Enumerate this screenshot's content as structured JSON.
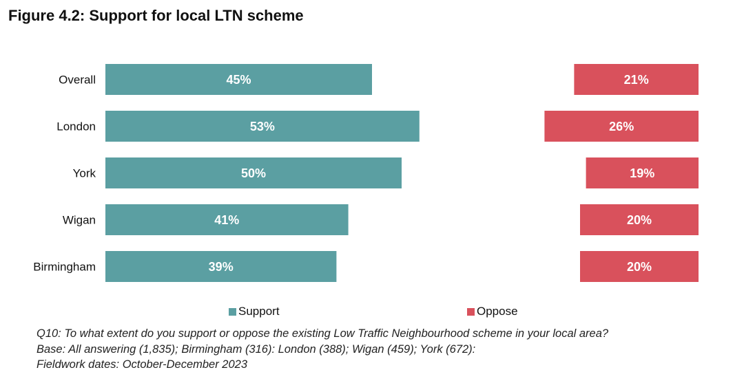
{
  "figure_title": "Figure 4.2: Support for local LTN scheme",
  "colors": {
    "support": "#5b9fa2",
    "oppose": "#d9515c",
    "bar_text": "#ffffff"
  },
  "chart_data": {
    "type": "bar",
    "orientation": "horizontal",
    "title": "Figure 4.2: Support for local LTN scheme",
    "categories": [
      "Overall",
      "London",
      "York",
      "Wigan",
      "Birmingham"
    ],
    "series": [
      {
        "name": "Support",
        "values": [
          45,
          53,
          50,
          41,
          39
        ],
        "labels": [
          "45%",
          "53%",
          "50%",
          "41%",
          "39%"
        ],
        "color": "#5b9fa2",
        "anchor": "left"
      },
      {
        "name": "Oppose",
        "values": [
          21,
          26,
          19,
          20,
          20
        ],
        "labels": [
          "21%",
          "26%",
          "19%",
          "20%",
          "20%"
        ],
        "color": "#d9515c",
        "anchor": "right"
      }
    ],
    "unit": "%",
    "legend_position": "bottom",
    "grid": false
  },
  "legend": {
    "support_label": "Support",
    "oppose_label": "Oppose"
  },
  "notes": {
    "question": "Q10: To what extent do you support or oppose the existing Low Traffic Neighbourhood scheme in your local area?",
    "base": "Base: All answering (1,835); Birmingham (316): London (388); Wigan (459); York (672):",
    "fieldwork": "Fieldwork dates: October-December 2023"
  }
}
